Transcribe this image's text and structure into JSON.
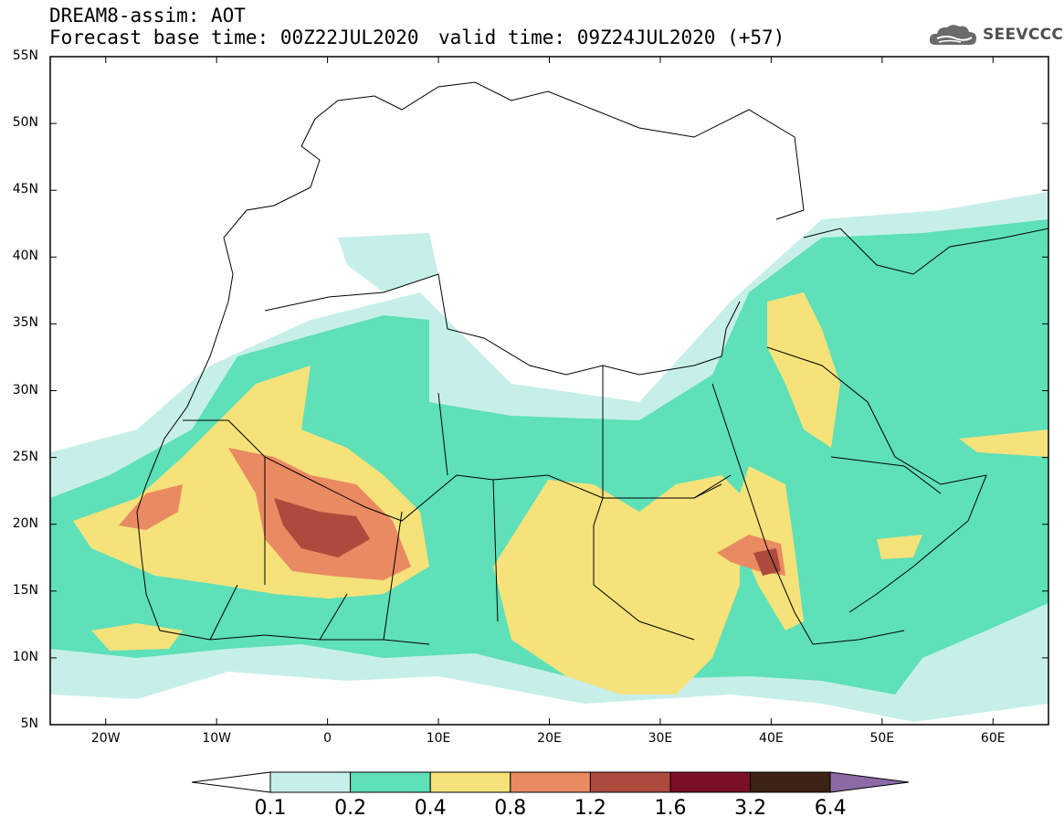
{
  "title": {
    "line1": "DREAM8-assim: AOT",
    "line2": "Forecast base time: 00Z22JUL2020",
    "valid": "valid time: 09Z24JUL2020 (+57)"
  },
  "logo": {
    "text": "SEEVCCC",
    "icon": "cloud-icon"
  },
  "map": {
    "lon_range": [
      -25,
      65
    ],
    "lat_range": [
      5,
      55
    ],
    "y_ticks": [
      "55N",
      "50N",
      "45N",
      "40N",
      "35N",
      "30N",
      "25N",
      "20N",
      "15N",
      "10N",
      "5N"
    ],
    "x_ticks": [
      "20W",
      "10W",
      "0",
      "10E",
      "20E",
      "30E",
      "40E",
      "50E",
      "60E"
    ]
  },
  "legend": {
    "levels": [
      "0.1",
      "0.2",
      "0.4",
      "0.8",
      "1.2",
      "1.6",
      "3.2",
      "6.4"
    ],
    "colors": [
      "#c7efe9",
      "#5ee0b9",
      "#f5e27a",
      "#e98a63",
      "#ad4a3e",
      "#7b0f28",
      "#3d2216",
      "#8c6aa6"
    ]
  }
}
